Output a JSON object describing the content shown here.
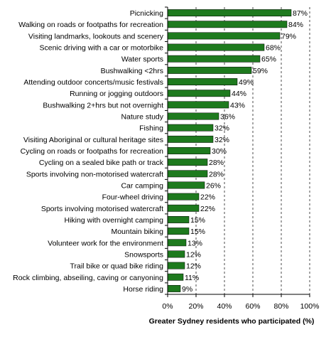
{
  "chart_data": {
    "type": "bar",
    "orientation": "horizontal",
    "categories": [
      "Picnicking",
      "Walking on roads or footpaths for recreation",
      "Visiting landmarks, lookouts and scenery",
      "Scenic driving with a car or motorbike",
      "Water sports",
      "Bushwalking <2hrs",
      "Attending outdoor concerts/music festivals",
      "Running or jogging outdoors",
      "Bushwalking 2+hrs but not overnight",
      "Nature study",
      "Fishing",
      "Visiting Aboriginal or cultural heritage sites",
      "Cycling on roads or footpaths for recreation",
      "Cycling on a sealed bike path or track",
      "Sports involving non-motorised watercraft",
      "Car camping",
      "Four-wheel driving",
      "Sports involving motorised watercraft",
      "Hiking with overnight camping",
      "Mountain biking",
      "Volunteer work for the environment",
      "Snowsports",
      "Trail bike or quad bike riding",
      "Rock climbing, abseiling, caving or canyoning",
      "Horse riding"
    ],
    "values": [
      87,
      84,
      79,
      68,
      65,
      59,
      49,
      44,
      43,
      36,
      32,
      32,
      30,
      28,
      28,
      26,
      22,
      22,
      15,
      15,
      13,
      12,
      12,
      11,
      9
    ],
    "value_labels": [
      "87%",
      "84%",
      "79%",
      "68%",
      "65%",
      "59%",
      "49%",
      "44%",
      "43%",
      "36%",
      "32%",
      "32%",
      "30%",
      "28%",
      "28%",
      "26%",
      "22%",
      "22%",
      "15%",
      "15%",
      "13%",
      "12%",
      "12%",
      "11%",
      "9%"
    ],
    "xlabel": "Greater Sydney residents who participated (%)",
    "ylabel": "",
    "xlim": [
      0,
      100
    ],
    "xticks": [
      "0%",
      "20%",
      "40%",
      "60%",
      "80%",
      "100%"
    ],
    "grid": true,
    "bar_color": "#1e7a1e"
  }
}
